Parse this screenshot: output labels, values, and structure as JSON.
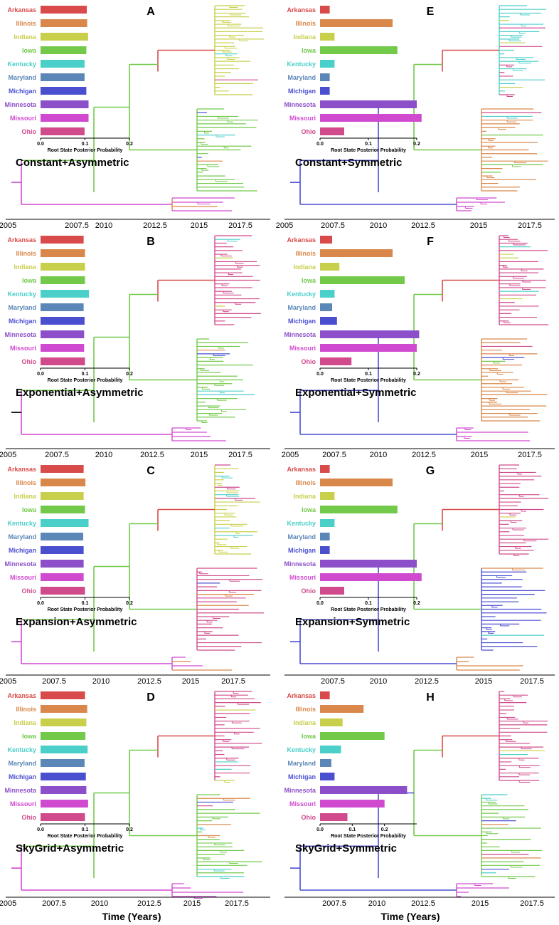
{
  "figure": {
    "x_axis_title": "Time (Years)",
    "bar_axis_title": "Root State Posterior Probability"
  },
  "colors": {
    "Arkansas": "#d94a4a",
    "Illinois": "#d9874a",
    "Indiana": "#c8cf4a",
    "Iowa": "#72c94a",
    "Kentucky": "#4acfc9",
    "Maryland": "#5a86b8",
    "Michigan": "#4a4fd0",
    "Minnesota": "#8c4fc9",
    "Missouri": "#d04ad0",
    "Ohio": "#d04a8c"
  },
  "chart_data": [
    {
      "panel": "A",
      "type": "bar",
      "title": "Constant+Asymmetric",
      "categories": [
        "Arkansas",
        "Illinois",
        "Indiana",
        "Iowa",
        "Kentucky",
        "Maryland",
        "Michigan",
        "Minnesota",
        "Missouri",
        "Ohio"
      ],
      "values": [
        0.104,
        0.105,
        0.107,
        0.103,
        0.099,
        0.099,
        0.103,
        0.108,
        0.108,
        0.099
      ],
      "xticks": [
        "0.0",
        "0.1",
        "0.2"
      ],
      "xlim": [
        0,
        0.2
      ],
      "xlabel": "Root State Posterior Probability",
      "time_ticks": [
        "2005",
        "2007.5",
        "2010",
        "2012.5",
        "2015",
        "2017.5"
      ]
    },
    {
      "panel": "B",
      "type": "bar",
      "title": "Exponential+Asymmetric",
      "categories": [
        "Arkansas",
        "Illinois",
        "Indiana",
        "Iowa",
        "Kentucky",
        "Maryland",
        "Michigan",
        "Minnesota",
        "Missouri",
        "Ohio"
      ],
      "values": [
        0.097,
        0.1,
        0.1,
        0.1,
        0.109,
        0.097,
        0.099,
        0.098,
        0.098,
        0.1
      ],
      "xticks": [
        "0.0",
        "0.1",
        "0.2"
      ],
      "xlim": [
        0,
        0.2
      ],
      "xlabel": "Root State Posterior Probability",
      "time_ticks": [
        "2005",
        "2007.5",
        "2010",
        "2012.5",
        "2015",
        "2017.5"
      ]
    },
    {
      "panel": "C",
      "type": "bar",
      "title": "Expansion+Asymmetric",
      "categories": [
        "Arkansas",
        "Illinois",
        "Indiana",
        "Iowa",
        "Kentucky",
        "Maryland",
        "Michigan",
        "Minnesota",
        "Missouri",
        "Ohio"
      ],
      "values": [
        0.097,
        0.101,
        0.097,
        0.1,
        0.108,
        0.096,
        0.097,
        0.097,
        0.097,
        0.1
      ],
      "xticks": [
        "0.0",
        "0.1",
        "0.2"
      ],
      "xlim": [
        0,
        0.2
      ],
      "xlabel": "Root State Posterior Probability",
      "time_ticks": [
        "2005",
        "2007.5",
        "2010",
        "2012.5",
        "2015",
        "2017.5"
      ]
    },
    {
      "panel": "D",
      "type": "bar",
      "title": "SkyGrid+Asymmetric",
      "categories": [
        "Arkansas",
        "Illinois",
        "Indiana",
        "Iowa",
        "Kentucky",
        "Maryland",
        "Michigan",
        "Minnesota",
        "Missouri",
        "Ohio"
      ],
      "values": [
        0.1,
        0.105,
        0.103,
        0.101,
        0.106,
        0.099,
        0.102,
        0.103,
        0.107,
        0.1
      ],
      "xticks": [
        "0.0",
        "0.1",
        "0.2"
      ],
      "xlim": [
        0,
        0.2
      ],
      "xlabel": "Root State Posterior Probability",
      "time_ticks": [
        "2005",
        "2007.5",
        "2010",
        "2012.5",
        "2015",
        "2017.5"
      ]
    },
    {
      "panel": "E",
      "type": "bar",
      "title": "Constant+Symmetric",
      "categories": [
        "Arkansas",
        "Illinois",
        "Indiana",
        "Iowa",
        "Kentucky",
        "Maryland",
        "Michigan",
        "Minnesota",
        "Missouri",
        "Ohio"
      ],
      "values": [
        0.02,
        0.15,
        0.03,
        0.16,
        0.03,
        0.02,
        0.02,
        0.2,
        0.21,
        0.05
      ],
      "xticks": [
        "0.0",
        "0.1",
        "0.2"
      ],
      "xlim": [
        0,
        0.2
      ],
      "xlabel": "Root State Posterior Probability",
      "time_ticks": [
        "2005",
        "2007.5",
        "2010",
        "2012.5",
        "2015",
        "2017.5"
      ]
    },
    {
      "panel": "F",
      "type": "bar",
      "title": "Exponential+Symmetric",
      "categories": [
        "Arkansas",
        "Illinois",
        "Indiana",
        "Iowa",
        "Kentucky",
        "Maryland",
        "Michigan",
        "Minnesota",
        "Missouri",
        "Ohio"
      ],
      "values": [
        0.025,
        0.15,
        0.04,
        0.175,
        0.03,
        0.025,
        0.035,
        0.205,
        0.2,
        0.065
      ],
      "xticks": [
        "0.0",
        "0.1",
        "0.2"
      ],
      "xlim": [
        0,
        0.2
      ],
      "xlabel": "Root State Posterior Probability",
      "time_ticks": [
        "2005",
        "2007.5",
        "2010",
        "2012.5",
        "2015",
        "2017.5"
      ]
    },
    {
      "panel": "G",
      "type": "bar",
      "title": "Expansion+Symmetric",
      "categories": [
        "Arkansas",
        "Illinois",
        "Indiana",
        "Iowa",
        "Kentucky",
        "Maryland",
        "Michigan",
        "Minnesota",
        "Missouri",
        "Ohio"
      ],
      "values": [
        0.02,
        0.15,
        0.03,
        0.16,
        0.03,
        0.02,
        0.02,
        0.2,
        0.21,
        0.05
      ],
      "xticks": [
        "0.0",
        "0.1",
        "0.2"
      ],
      "xlim": [
        0,
        0.2
      ],
      "xlabel": "Root State Posterior Probability",
      "time_ticks": [
        "2007.5",
        "2010",
        "2012.5",
        "2015",
        "2017.5"
      ]
    },
    {
      "panel": "H",
      "type": "bar",
      "title": "SkyGrid+Symmetric",
      "categories": [
        "Arkansas",
        "Illinois",
        "Indiana",
        "Iowa",
        "Kentucky",
        "Maryland",
        "Michigan",
        "Minnesota",
        "Missouri",
        "Ohio"
      ],
      "values": [
        0.03,
        0.135,
        0.07,
        0.2,
        0.065,
        0.035,
        0.045,
        0.27,
        0.2,
        0.085
      ],
      "xticks": [
        "0.0",
        "0.1",
        "0.2"
      ],
      "xlim": [
        0,
        0.3
      ],
      "xlabel": "Root State Posterior Probability",
      "time_ticks": [
        "2007.5",
        "2010",
        "2012.5",
        "2015",
        "2017.5"
      ]
    }
  ]
}
